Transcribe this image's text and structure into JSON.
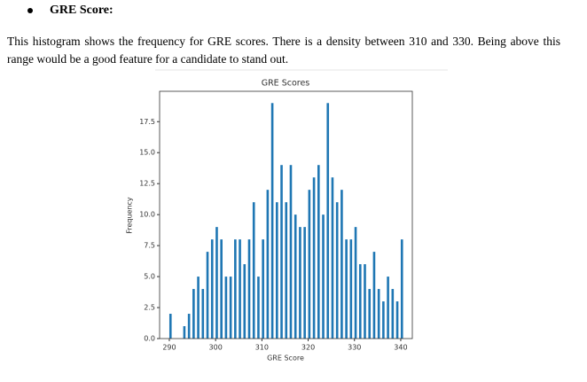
{
  "heading": "GRE Score:",
  "paragraph": "This histogram shows the frequency for GRE scores. There is a density between 310 and 330. Being above this range would be a good feature for a candidate to stand out.",
  "chart_data": {
    "type": "histogram",
    "title": "GRE Scores",
    "x_label": "GRE Score",
    "y_label": "Frequency",
    "color": "#1f77b4",
    "bins": [
      290,
      290.5,
      291,
      291.5,
      292,
      292.5,
      293,
      293.5,
      294,
      294.5,
      295,
      295.5,
      296,
      296.5,
      297,
      297.5,
      298,
      298.5,
      299,
      299.5,
      300,
      300.5,
      301,
      301.5,
      302,
      302.5,
      303,
      303.5,
      304,
      304.5,
      305,
      305.5,
      306,
      306.5,
      307,
      307.5,
      308,
      308.5,
      309,
      309.5,
      310,
      310.5,
      311,
      311.5,
      312,
      312.5,
      313,
      313.5,
      314,
      314.5,
      315,
      315.5,
      316,
      316.5,
      317,
      317.5,
      318,
      318.5,
      319,
      319.5,
      320,
      320.5,
      321,
      321.5,
      322,
      322.5,
      323,
      323.5,
      324,
      324.5,
      325,
      325.5,
      326,
      326.5,
      327,
      327.5,
      328,
      328.5,
      329,
      329.5,
      330,
      330.5,
      331,
      331.5,
      332,
      332.5,
      333,
      333.5,
      334,
      334.5,
      335,
      335.5,
      336,
      336.5,
      337,
      337.5,
      338,
      338.5,
      339,
      339.5,
      340,
      340.5
    ],
    "values": [
      2,
      0,
      0,
      0,
      0,
      0,
      1,
      0,
      2,
      0,
      4,
      0,
      5,
      0,
      4,
      0,
      7,
      0,
      8,
      0,
      9,
      0,
      8,
      0,
      5,
      0,
      5,
      0,
      8,
      0,
      8,
      0,
      6,
      0,
      8,
      0,
      11,
      0,
      5,
      0,
      8,
      0,
      12,
      0,
      19,
      0,
      11,
      0,
      14,
      0,
      11,
      0,
      14,
      0,
      10,
      0,
      9,
      0,
      9,
      0,
      12,
      0,
      13,
      0,
      14,
      0,
      10,
      0,
      19,
      0,
      13,
      0,
      11,
      0,
      12,
      0,
      8,
      0,
      8,
      0,
      9,
      0,
      6,
      0,
      6,
      0,
      4,
      0,
      7,
      0,
      4,
      0,
      3,
      0,
      5,
      0,
      4,
      0,
      3,
      0,
      8
    ],
    "xlim": [
      287.9,
      342.5
    ],
    "ylim": [
      0,
      19.95
    ],
    "xticks": [
      290,
      300,
      310,
      320,
      330,
      340
    ],
    "yticks": [
      {
        "value": 0,
        "label": "0.0"
      },
      {
        "value": 2.5,
        "label": "2.5"
      },
      {
        "value": 5,
        "label": "5.0"
      },
      {
        "value": 7.5,
        "label": "7.5"
      },
      {
        "value": 10,
        "label": "10.0"
      },
      {
        "value": 12.5,
        "label": "12.5"
      },
      {
        "value": 15,
        "label": "15.0"
      },
      {
        "value": 17.5,
        "label": "17.5"
      }
    ]
  }
}
